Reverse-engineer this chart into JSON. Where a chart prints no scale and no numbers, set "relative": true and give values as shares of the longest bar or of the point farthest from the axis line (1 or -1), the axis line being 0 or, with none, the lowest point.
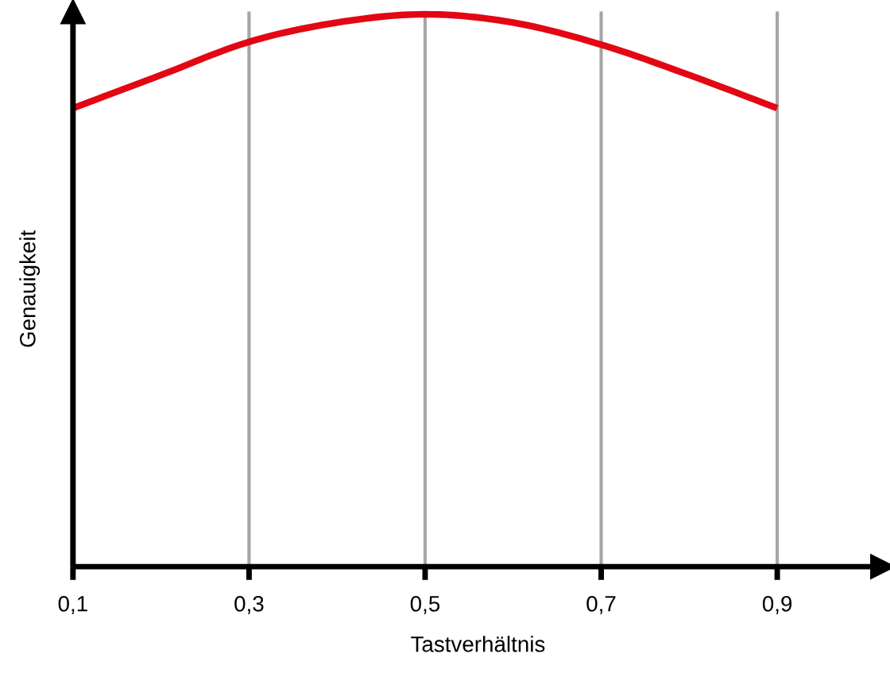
{
  "chart_data": {
    "type": "line",
    "relative": true,
    "xlabel": "Tastverhältnis",
    "ylabel": "Genauigkeit",
    "x": [
      0.1,
      0.2,
      0.3,
      0.4,
      0.5,
      0.6,
      0.7,
      0.8,
      0.9
    ],
    "xlim": [
      0.1,
      1.02
    ],
    "xticks": [
      {
        "value": 0.1,
        "label": "0,1"
      },
      {
        "value": 0.3,
        "label": "0,3"
      },
      {
        "value": 0.5,
        "label": "0,5"
      },
      {
        "value": 0.7,
        "label": "0,7"
      },
      {
        "value": 0.9,
        "label": "0,9"
      }
    ],
    "grid": "x",
    "legend": false,
    "marker": "none",
    "line_style": "solid",
    "series": [
      {
        "color": "#e30613",
        "values": [
          0.83,
          0.89,
          0.95,
          0.985,
          1,
          0.985,
          0.945,
          0.89,
          0.83
        ]
      }
    ]
  }
}
